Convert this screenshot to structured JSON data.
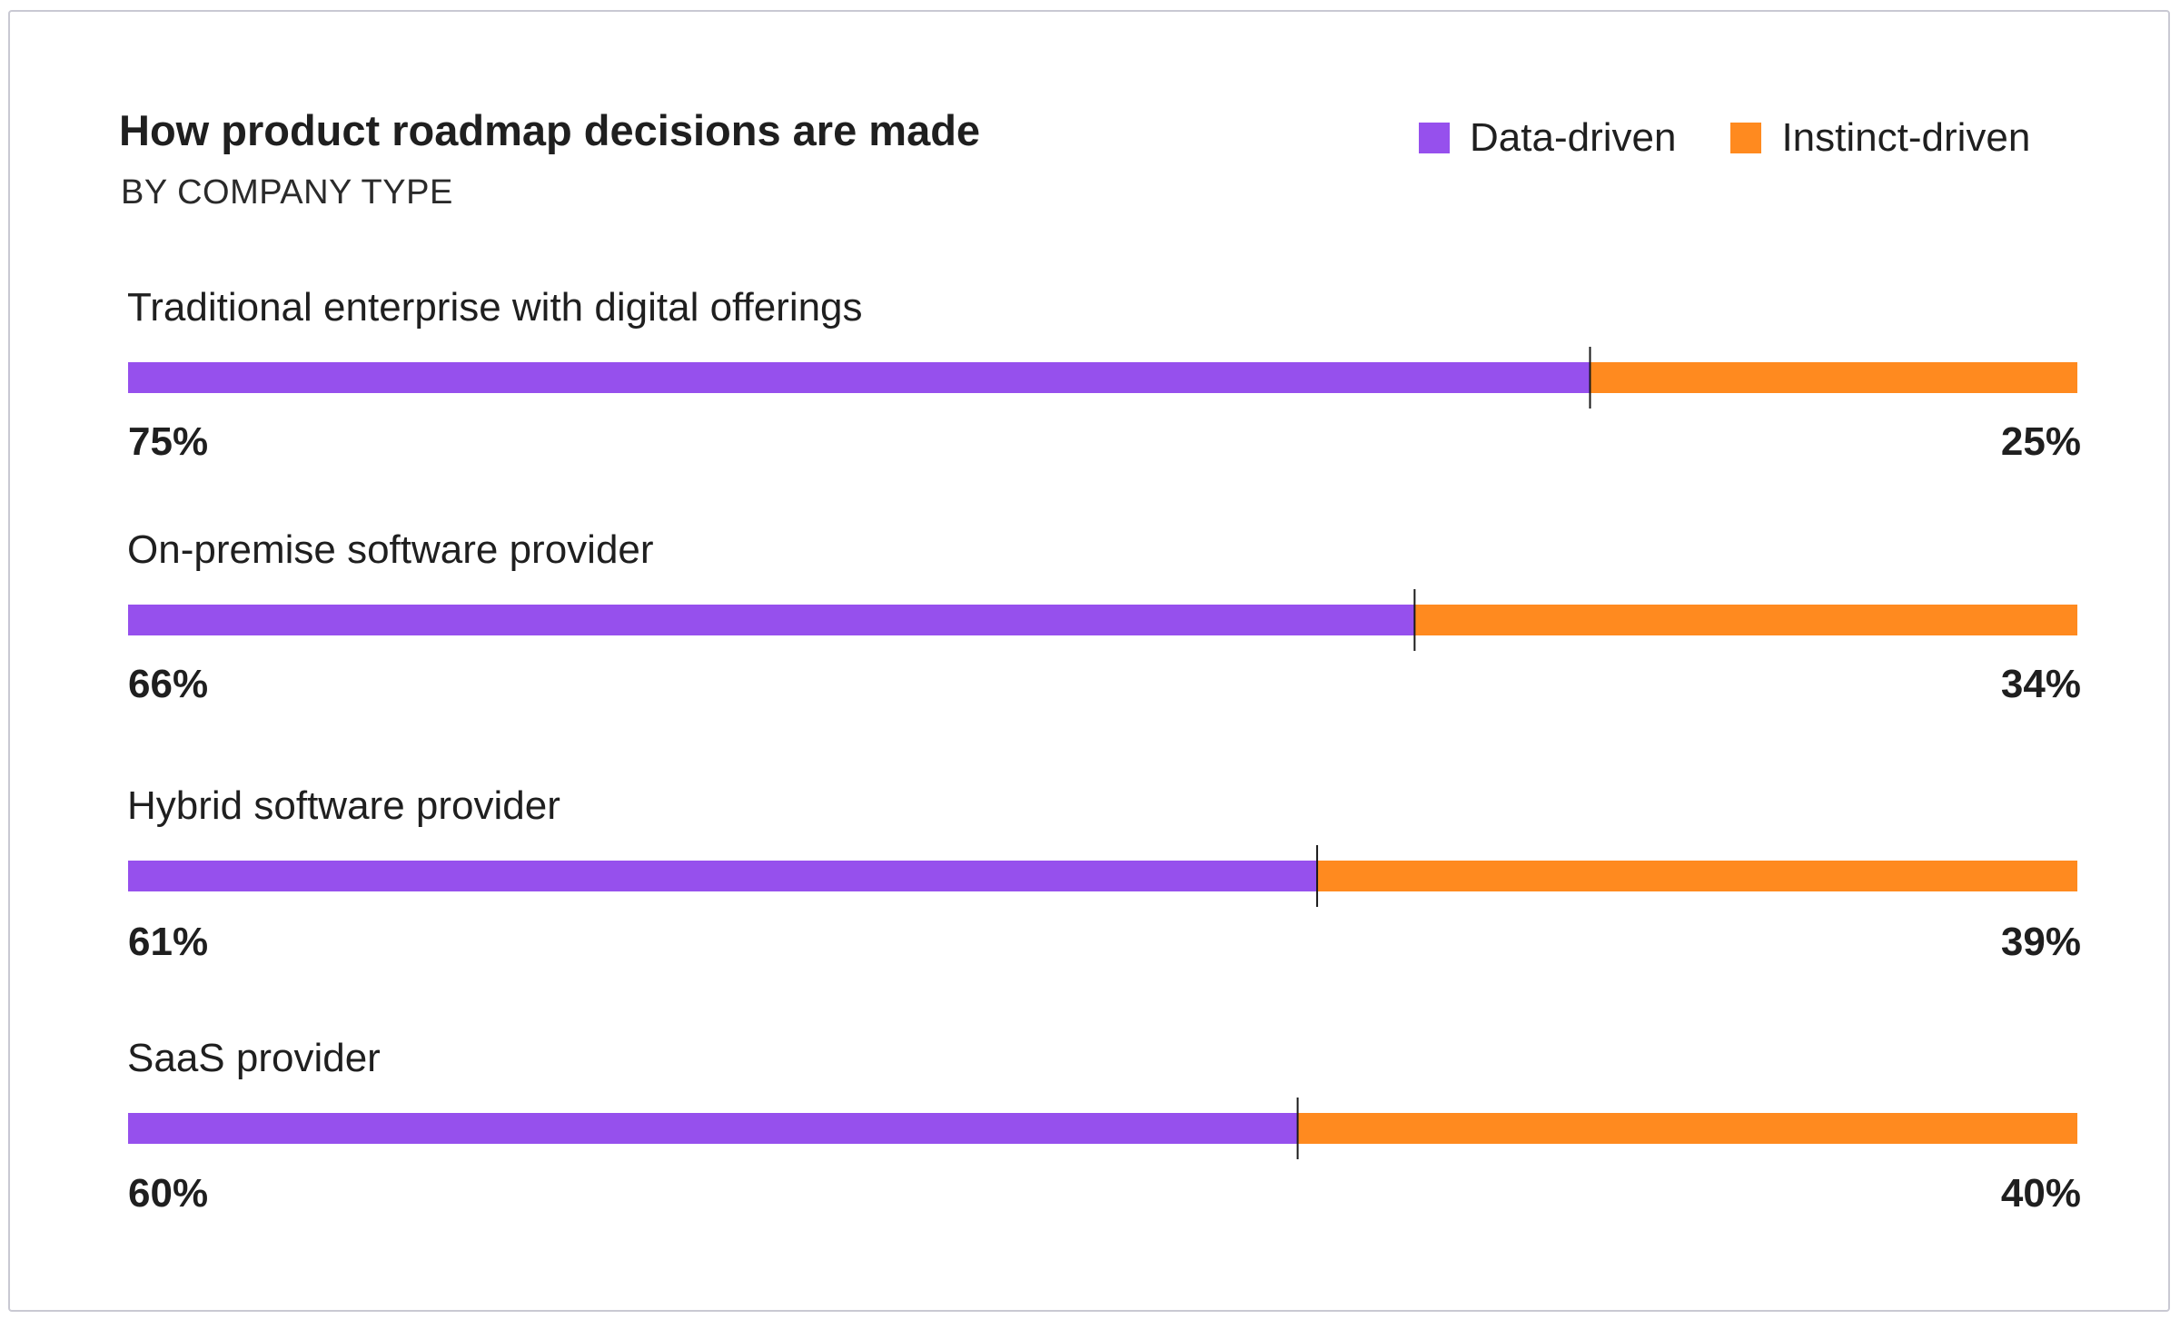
{
  "chart_data": {
    "type": "bar",
    "orientation": "horizontal",
    "stacked": true,
    "normalized": true,
    "title": "How product roadmap decisions are made",
    "subtitle": "BY COMPANY TYPE",
    "legend_position": "top-right",
    "grid": false,
    "xlim": [
      0,
      100
    ],
    "categories": [
      "Traditional enterprise with digital offerings",
      "On-premise software provider",
      "Hybrid software provider",
      "SaaS provider"
    ],
    "series": [
      {
        "name": "Data-driven",
        "color": "#9650ed",
        "values": [
          75,
          66,
          61,
          60
        ],
        "labels": [
          "75%",
          "66%",
          "61%",
          "60%"
        ]
      },
      {
        "name": "Instinct-driven",
        "color": "#ff8a1f",
        "values": [
          25,
          34,
          39,
          40
        ],
        "labels": [
          "25%",
          "34%",
          "39%",
          "40%"
        ]
      }
    ]
  }
}
